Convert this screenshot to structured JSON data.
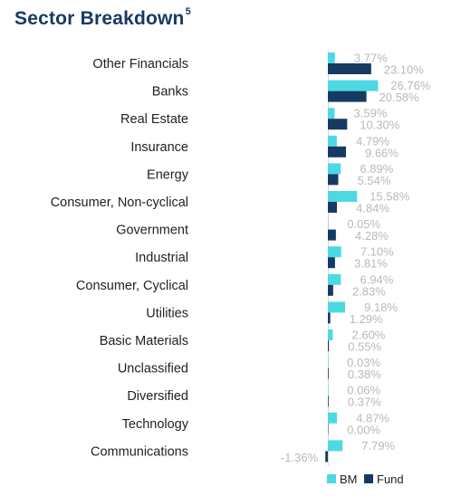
{
  "title": "Sector Breakdown",
  "title_superscript": "5",
  "colors": {
    "bm": "#4dd9e3",
    "fund": "#163b63",
    "title": "#163b63",
    "value_label": "#b9b9b9"
  },
  "chart_data": {
    "type": "bar",
    "orientation": "horizontal",
    "title": "Sector Breakdown",
    "categories": [
      "Other Financials",
      "Banks",
      "Real Estate",
      "Insurance",
      "Energy",
      "Consumer, Non-cyclical",
      "Government",
      "Industrial",
      "Consumer, Cyclical",
      "Utilities",
      "Basic Materials",
      "Unclassified",
      "Diversified",
      "Technology",
      "Communications"
    ],
    "series": [
      {
        "name": "BM",
        "color": "#4dd9e3",
        "values": [
          3.77,
          26.76,
          3.59,
          4.79,
          6.89,
          15.58,
          0.05,
          7.1,
          6.94,
          9.18,
          2.6,
          0.03,
          0.06,
          4.87,
          7.79
        ],
        "labels": [
          "3.77%",
          "26.76%",
          "3.59%",
          "4.79%",
          "6.89%",
          "15.58%",
          "0.05%",
          "7.10%",
          "6.94%",
          "9.18%",
          "2.60%",
          "0.03%",
          "0.06%",
          "4.87%",
          "7.79%"
        ]
      },
      {
        "name": "Fund",
        "color": "#163b63",
        "values": [
          23.1,
          20.58,
          10.3,
          9.66,
          5.54,
          4.84,
          4.28,
          3.81,
          2.83,
          1.29,
          0.55,
          0.38,
          0.37,
          0.0,
          -1.36
        ],
        "labels": [
          "23.10%",
          "20.58%",
          "10.30%",
          "9.66%",
          "5.54%",
          "4.84%",
          "4.28%",
          "3.81%",
          "2.83%",
          "1.29%",
          "0.55%",
          "0.38%",
          "0.37%",
          "0.00%",
          "-1.36%"
        ]
      }
    ],
    "grid": false,
    "legend_position": "bottom-right",
    "legend": [
      "BM",
      "Fund"
    ]
  }
}
